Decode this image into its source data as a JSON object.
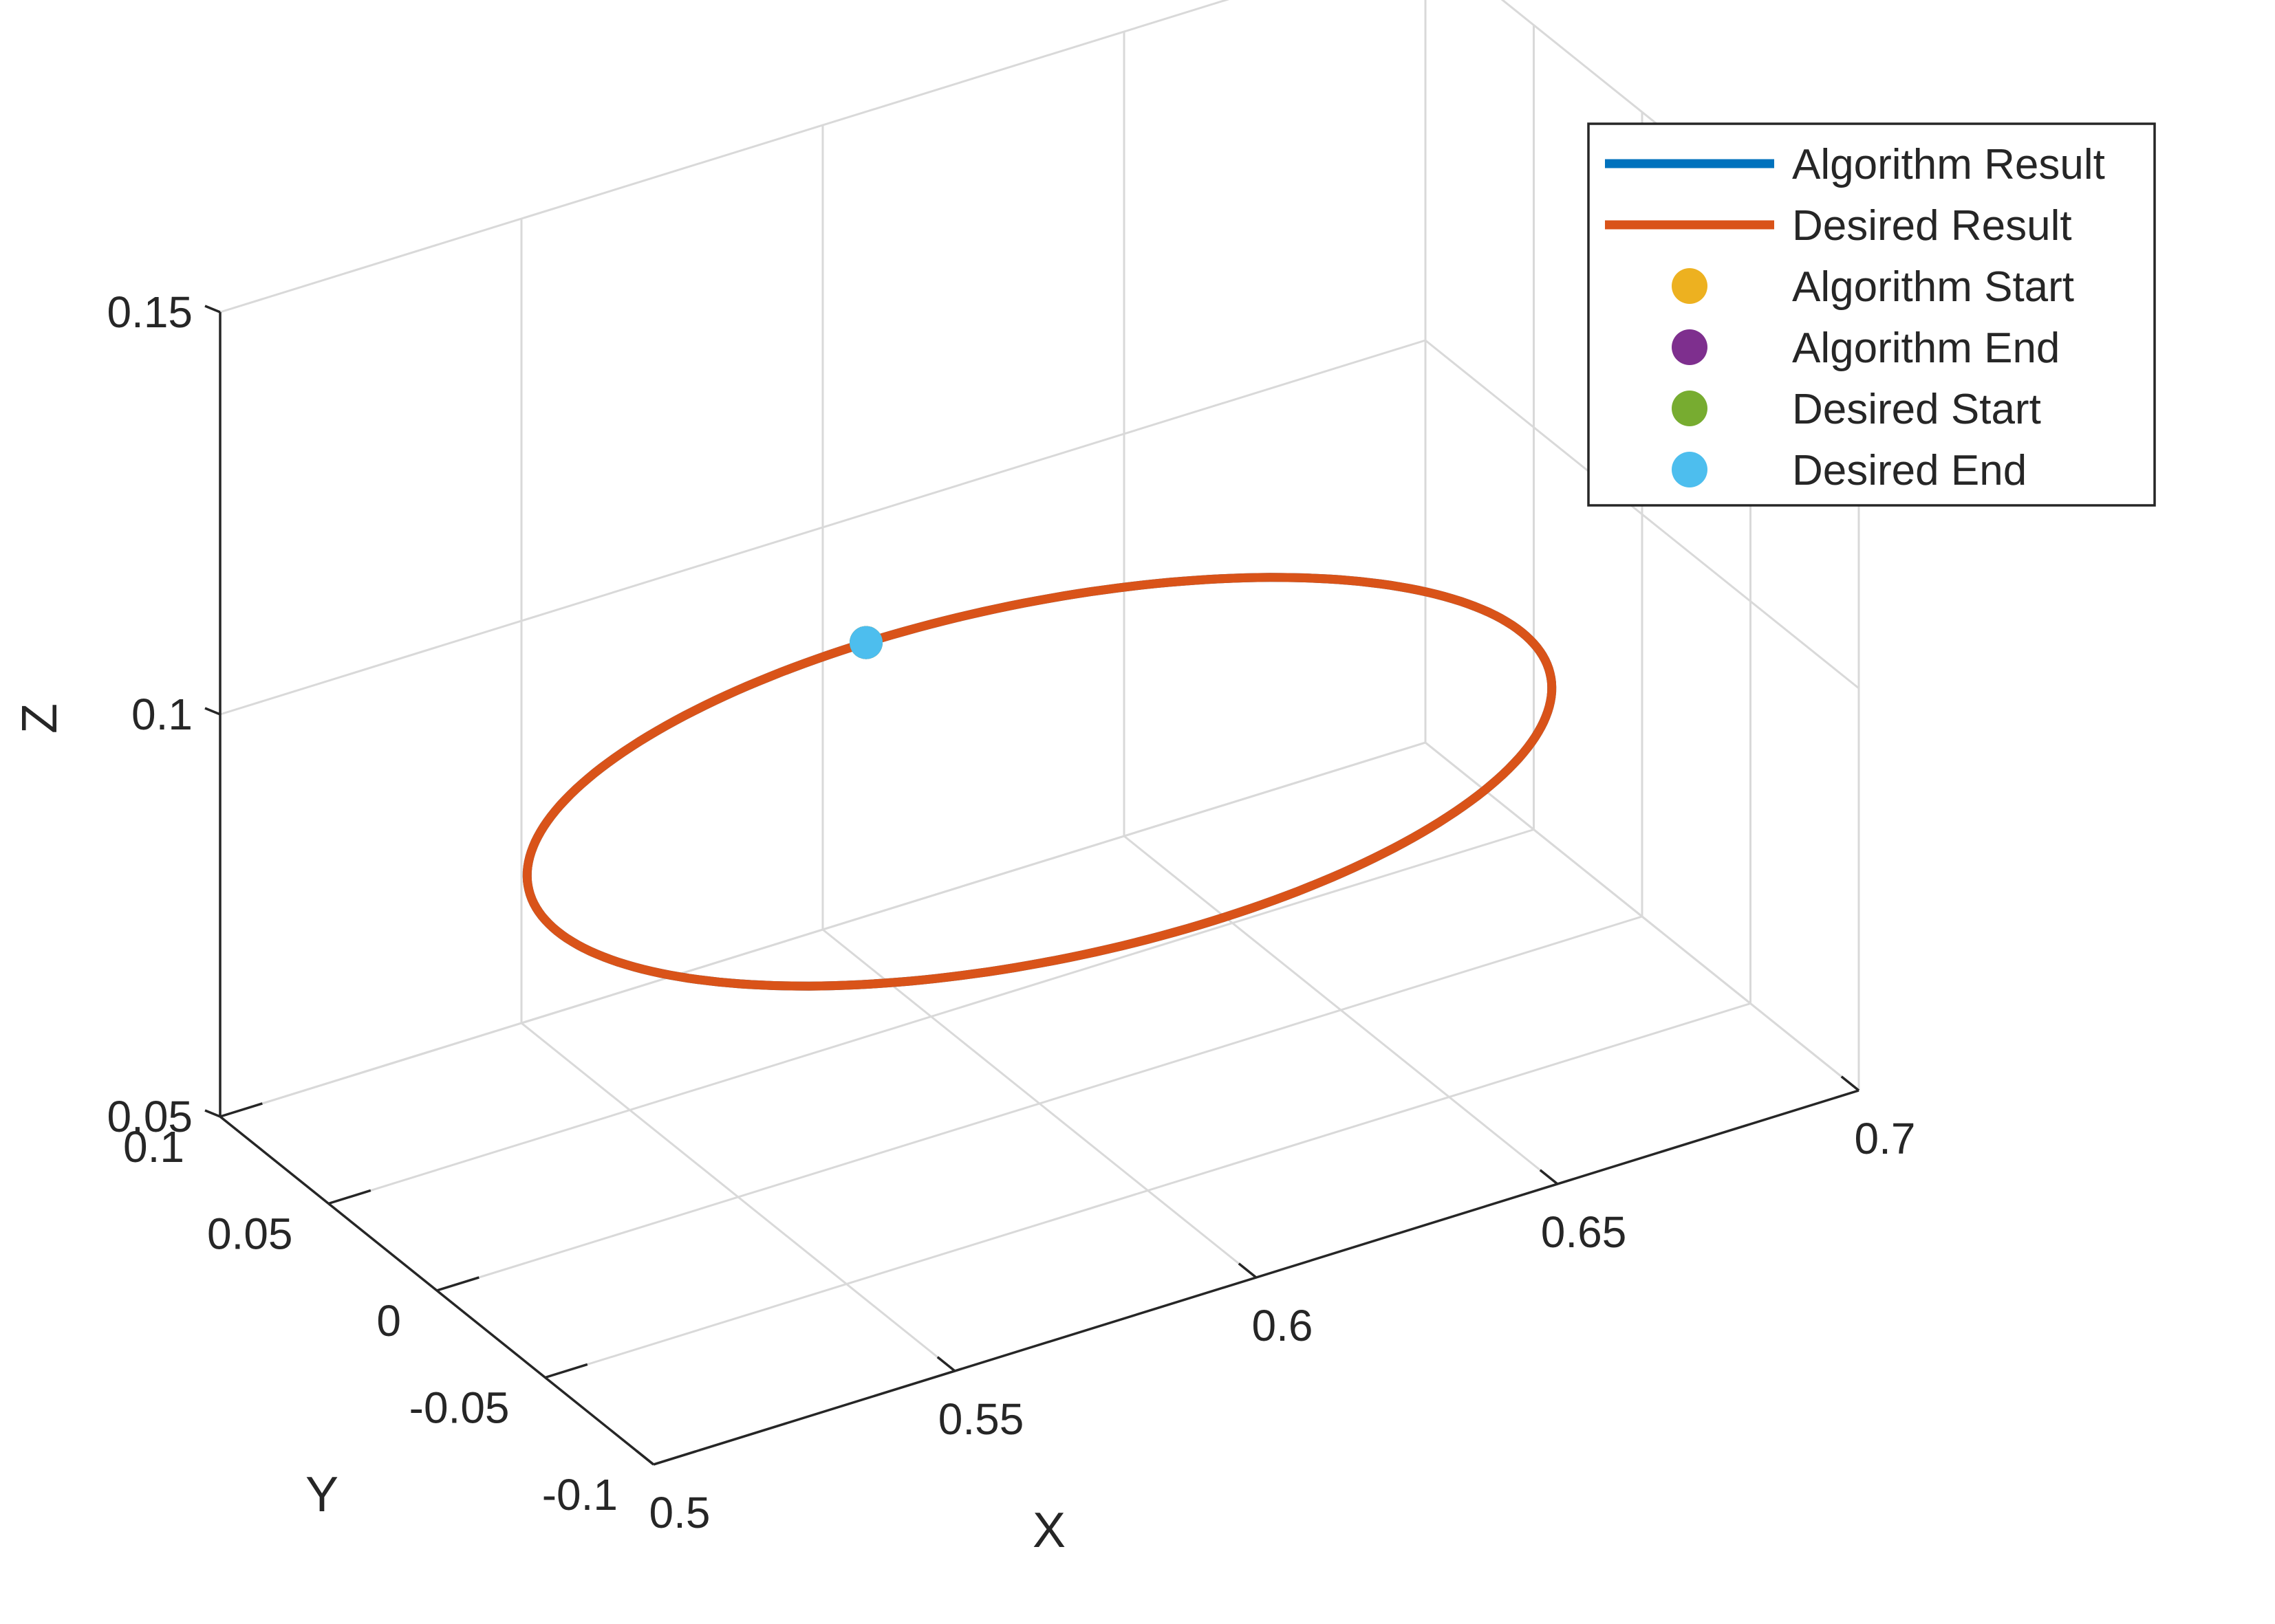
{
  "chart_data": {
    "type": "line",
    "projection": "3d",
    "xlabel": "X",
    "ylabel": "Y",
    "zlabel": "Z",
    "xlim": [
      0.5,
      0.7
    ],
    "ylim": [
      -0.1,
      0.1
    ],
    "zlim": [
      0.05,
      0.15
    ],
    "xticks": [
      0.5,
      0.55,
      0.6,
      0.65,
      0.7
    ],
    "yticks": [
      -0.1,
      -0.05,
      0,
      0.05,
      0.1
    ],
    "zticks": [
      0.05,
      0.1,
      0.15
    ],
    "xtick_labels": [
      "0.5",
      "0.55",
      "0.6",
      "0.65",
      "0.7"
    ],
    "ytick_labels": [
      "-0.1",
      "-0.05",
      "0",
      "0.05",
      "0.1"
    ],
    "ztick_labels": [
      "0.05",
      "0.1",
      "0.15"
    ],
    "grid": true,
    "legend_position": "top-right",
    "trajectory": {
      "shape": "circle",
      "center": [
        0.6,
        0.0,
        0.09
      ],
      "radius": 0.08
    },
    "series": [
      {
        "name": "Algorithm Result",
        "kind": "line",
        "color": "#0072BD"
      },
      {
        "name": "Desired Result",
        "kind": "line",
        "color": "#D95319"
      },
      {
        "name": "Algorithm Start",
        "kind": "marker",
        "color": "#EDB120",
        "point": [
          0.6,
          0.08,
          0.09
        ]
      },
      {
        "name": "Algorithm End",
        "kind": "marker",
        "color": "#7E2F8E",
        "point": [
          0.6,
          0.08,
          0.09
        ]
      },
      {
        "name": "Desired Start",
        "kind": "marker",
        "color": "#77AC30",
        "point": [
          0.6,
          0.08,
          0.09
        ]
      },
      {
        "name": "Desired End",
        "kind": "marker",
        "color": "#4DBEEE",
        "point": [
          0.6,
          0.08,
          0.09
        ]
      }
    ]
  }
}
